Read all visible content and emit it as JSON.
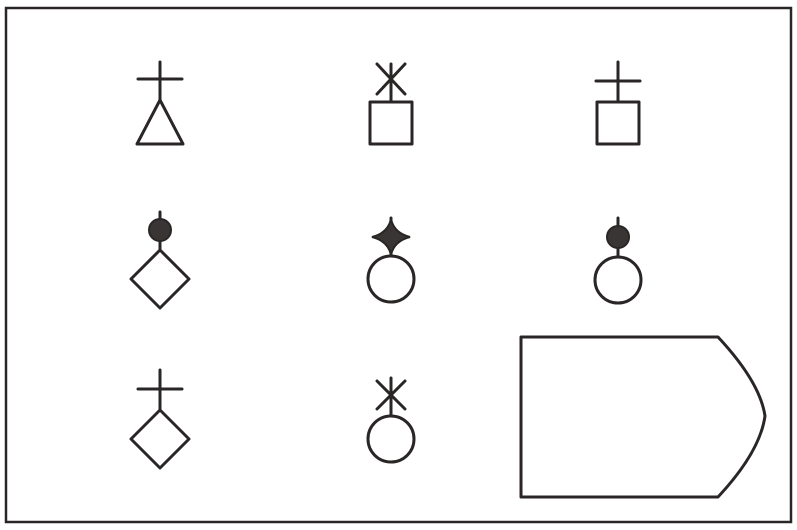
{
  "puzzle": {
    "colors": {
      "ink": "#2a2626",
      "fill": "#3a3535",
      "paper": "#ffffff"
    },
    "grid": [
      [
        {
          "top": "cross",
          "base": "triangle"
        },
        {
          "top": "asterisk",
          "base": "square"
        },
        {
          "top": "cross",
          "base": "square"
        }
      ],
      [
        {
          "top": "filled-circle",
          "base": "diamond"
        },
        {
          "top": "filled-star",
          "base": "circle"
        },
        {
          "top": "filled-circle",
          "base": "circle"
        }
      ],
      [
        {
          "top": "cross",
          "base": "diamond"
        },
        {
          "top": "asterisk",
          "base": "circle"
        },
        {
          "top": "missing",
          "base": "missing"
        }
      ]
    ]
  }
}
